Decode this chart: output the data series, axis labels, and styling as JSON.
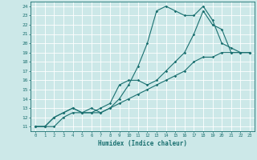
{
  "xlabel": "Humidex (Indice chaleur)",
  "bg_color": "#cce8e8",
  "line_color": "#1a7070",
  "grid_color": "#ffffff",
  "xlim": [
    -0.5,
    23.5
  ],
  "ylim": [
    10.5,
    24.5
  ],
  "xticks": [
    0,
    1,
    2,
    3,
    4,
    5,
    6,
    7,
    8,
    9,
    10,
    11,
    12,
    13,
    14,
    15,
    16,
    17,
    18,
    19,
    20,
    21,
    22,
    23
  ],
  "yticks": [
    11,
    12,
    13,
    14,
    15,
    16,
    17,
    18,
    19,
    20,
    21,
    22,
    23,
    24
  ],
  "curve1_x": [
    0,
    1,
    2,
    3,
    4,
    5,
    6,
    7,
    8,
    9,
    10,
    11,
    12,
    13,
    14,
    15,
    16,
    17,
    18,
    19,
    20,
    21,
    22,
    23
  ],
  "curve1_y": [
    11,
    11,
    12,
    12.5,
    13,
    12.5,
    13,
    12.5,
    13,
    14,
    15.5,
    17.5,
    20,
    23.5,
    24,
    23.5,
    23,
    23,
    24,
    22.5,
    20,
    19.5,
    19,
    19
  ],
  "curve2_x": [
    0,
    1,
    2,
    3,
    4,
    5,
    6,
    7,
    8,
    9,
    10,
    11,
    12,
    13,
    14,
    15,
    16,
    17,
    18,
    19,
    20,
    21,
    22,
    23
  ],
  "curve2_y": [
    11,
    11,
    12,
    12.5,
    13,
    12.5,
    12.5,
    13,
    13.5,
    15.5,
    16,
    16,
    15.5,
    16,
    17,
    18,
    19,
    21,
    23.5,
    22,
    21.5,
    19,
    19,
    19
  ],
  "curve3_x": [
    0,
    1,
    2,
    3,
    4,
    5,
    6,
    7,
    8,
    9,
    10,
    11,
    12,
    13,
    14,
    15,
    16,
    17,
    18,
    19,
    20,
    21,
    22,
    23
  ],
  "curve3_y": [
    11,
    11,
    11,
    12,
    12.5,
    12.5,
    12.5,
    12.5,
    13,
    13.5,
    14,
    14.5,
    15,
    15.5,
    16,
    16.5,
    17,
    18,
    18.5,
    18.5,
    19,
    19,
    19,
    19
  ]
}
